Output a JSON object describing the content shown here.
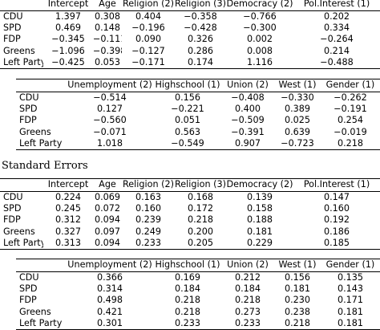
{
  "coefficients": {
    "part1": {
      "headers": [
        "",
        "Intercept",
        "Age",
        "Religion (2)",
        "Religion (3)",
        "Democracy (2)",
        "Pol.Interest (1)"
      ],
      "rows": [
        [
          "CDU",
          "1.397",
          "0.308",
          "0.404",
          "−0.358",
          "−0.766",
          "0.202"
        ],
        [
          "SPD",
          "0.469",
          "0.148",
          "−0.196",
          "−0.428",
          "−0.300",
          "0.334"
        ],
        [
          "FDP",
          "−0.345",
          "−0.111",
          "0.090",
          "0.326",
          "0.002",
          "−0.264"
        ],
        [
          "Greens",
          "−1.096",
          "−0.398",
          "−0.127",
          "0.286",
          "0.008",
          "0.214"
        ],
        [
          "Left Party",
          "−0.425",
          "0.053",
          "−0.171",
          "0.174",
          "1.116",
          "−0.488"
        ]
      ]
    },
    "part2": {
      "headers": [
        "",
        "Unemployment (2)",
        "Highschool (1)",
        "Union (2)",
        "West (1)",
        "Gender (1)"
      ],
      "rows": [
        [
          "CDU",
          "−0.514",
          "0.156",
          "−0.408",
          "−0.330",
          "−0.262"
        ],
        [
          "SPD",
          "0.127",
          "−0.221",
          "0.400",
          "0.389",
          "−0.191"
        ],
        [
          "FDP",
          "−0.560",
          "0.051",
          "−0.509",
          "0.025",
          "0.254"
        ],
        [
          "Greens",
          "−0.071",
          "0.563",
          "−0.391",
          "0.639",
          "−0.019"
        ],
        [
          "Left Party",
          "1.018",
          "−0.549",
          "0.907",
          "−0.723",
          "0.218"
        ]
      ]
    }
  },
  "standard_errors": {
    "title": "Standard Errors",
    "part1": {
      "headers": [
        "",
        "Intercept",
        "Age",
        "Religion (2)",
        "Religion (3)",
        "Democracy (2)",
        "Pol.Interest (1)"
      ],
      "rows": [
        [
          "CDU",
          "0.224",
          "0.069",
          "0.163",
          "0.168",
          "0.139",
          "0.147"
        ],
        [
          "SPD",
          "0.245",
          "0.072",
          "0.160",
          "0.172",
          "0.158",
          "0.160"
        ],
        [
          "FDP",
          "0.312",
          "0.094",
          "0.239",
          "0.218",
          "0.188",
          "0.192"
        ],
        [
          "Greens",
          "0.327",
          "0.097",
          "0.249",
          "0.200",
          "0.181",
          "0.186"
        ],
        [
          "Left Party",
          "0.313",
          "0.094",
          "0.233",
          "0.205",
          "0.229",
          "0.185"
        ]
      ]
    },
    "part2": {
      "headers": [
        "",
        "Unemployment (2)",
        "Highschool (1)",
        "Union (2)",
        "West (1)",
        "Gender (1)"
      ],
      "rows": [
        [
          "CDU",
          "0.366",
          "0.169",
          "0.212",
          "0.156",
          "0.135"
        ],
        [
          "SPD",
          "0.314",
          "0.184",
          "0.184",
          "0.181",
          "0.143"
        ],
        [
          "FDP",
          "0.498",
          "0.218",
          "0.218",
          "0.230",
          "0.171"
        ],
        [
          "Greens",
          "0.421",
          "0.218",
          "0.273",
          "0.238",
          "0.181"
        ],
        [
          "Left Party",
          "0.301",
          "0.233",
          "0.233",
          "0.218",
          "0.181"
        ]
      ]
    }
  }
}
